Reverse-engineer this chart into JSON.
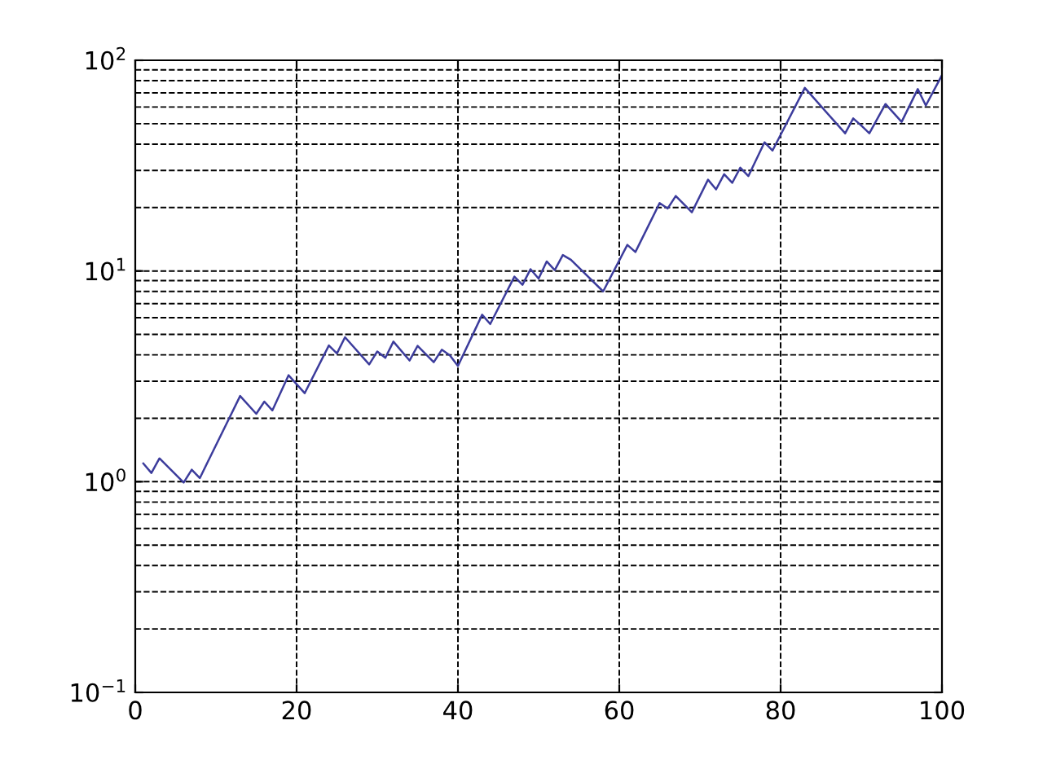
{
  "chart_data": {
    "type": "line",
    "x": [
      1,
      2,
      3,
      6,
      7,
      8,
      13,
      15,
      16,
      17,
      19,
      21,
      24,
      25,
      26,
      29,
      30,
      31,
      32,
      34,
      35,
      37,
      38,
      39,
      40,
      43,
      44,
      47,
      48,
      49,
      50,
      51,
      52,
      53,
      54,
      58,
      61,
      62,
      65,
      66,
      67,
      69,
      71,
      72,
      73,
      74,
      75,
      76,
      78,
      79,
      83,
      88,
      89,
      90,
      91,
      93,
      95,
      97,
      98,
      100
    ],
    "series": [
      {
        "color": "#3c3c9c",
        "values": [
          1.22,
          1.1,
          1.29,
          0.99,
          1.14,
          1.04,
          2.55,
          2.1,
          2.4,
          2.18,
          3.2,
          2.63,
          4.43,
          4.06,
          4.85,
          3.6,
          4.15,
          3.87,
          4.62,
          3.76,
          4.41,
          3.69,
          4.23,
          3.98,
          3.54,
          6.2,
          5.6,
          9.4,
          8.6,
          10.2,
          9.2,
          11.1,
          10.1,
          11.9,
          11.3,
          8.0,
          13.3,
          12.3,
          21,
          19.8,
          22.7,
          19,
          27.1,
          24.4,
          28.8,
          26.2,
          30.9,
          28.2,
          40.8,
          37.3,
          74,
          45,
          53,
          49,
          45,
          62,
          51,
          73,
          61,
          85
        ]
      }
    ],
    "xlim": [
      0,
      100
    ],
    "ylim": [
      0.1,
      100
    ],
    "log": true,
    "grid": true,
    "xticks": [
      0,
      20,
      40,
      60,
      80,
      100
    ],
    "yticks": [
      {
        "value": 0.1,
        "label": "10$^{−1}$"
      },
      {
        "value": 0.2,
        "label": null
      },
      {
        "value": 0.3,
        "label": null
      },
      {
        "value": 0.4,
        "label": null
      },
      {
        "value": 0.5,
        "label": null
      },
      {
        "value": 0.6,
        "label": null
      },
      {
        "value": 0.7,
        "label": null
      },
      {
        "value": 0.8,
        "label": null
      },
      {
        "value": 0.9,
        "label": null
      },
      {
        "value": 1,
        "label": "10$^{0}$"
      },
      {
        "value": 2,
        "label": null
      },
      {
        "value": 3,
        "label": null
      },
      {
        "value": 4,
        "label": null
      },
      {
        "value": 5,
        "label": null
      },
      {
        "value": 6,
        "label": null
      },
      {
        "value": 7,
        "label": null
      },
      {
        "value": 8,
        "label": null
      },
      {
        "value": 9,
        "label": null
      },
      {
        "value": 10,
        "label": "10$^{1}$"
      },
      {
        "value": 20,
        "label": null
      },
      {
        "value": 30,
        "label": null
      },
      {
        "value": 40,
        "label": null
      },
      {
        "value": 50,
        "label": null
      },
      {
        "value": 60,
        "label": null
      },
      {
        "value": 70,
        "label": null
      },
      {
        "value": 80,
        "label": null
      },
      {
        "value": 90,
        "label": null
      },
      {
        "value": 100,
        "label": "10$^{2}$"
      }
    ]
  }
}
